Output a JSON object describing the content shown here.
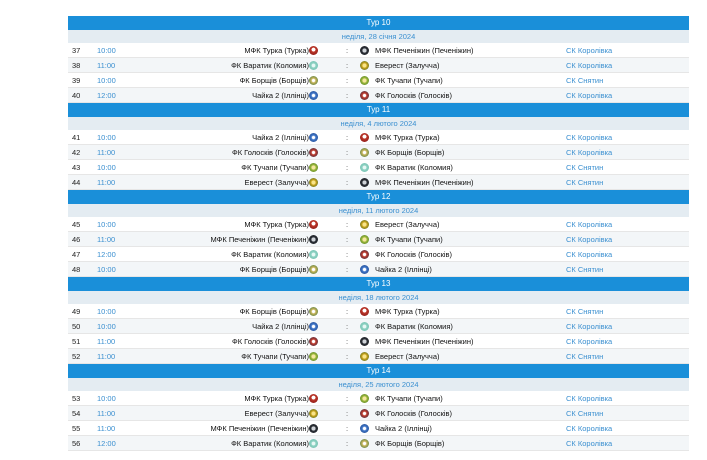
{
  "rounds": [
    {
      "title": "Тур 10",
      "date": "неділя, 28 січня 2024",
      "matches": [
        {
          "num": "37",
          "time": "10:00",
          "home": "МФК Турка (Турка)",
          "home_logo": "turka",
          "sep": ":",
          "away_logo": "pecheni",
          "away": "МФК Печеніжин (Печеніжин)",
          "venue": "СК Королівка"
        },
        {
          "num": "38",
          "time": "11:00",
          "home": "ФК Варатик (Коломия)",
          "home_logo": "varatyk",
          "sep": ":",
          "away_logo": "everest",
          "away": "Еверест (Залучча)",
          "venue": "СК Королівка"
        },
        {
          "num": "39",
          "time": "10:00",
          "home": "ФК Борщів (Борщів)",
          "home_logo": "borsch",
          "sep": ":",
          "away_logo": "tuchapy",
          "away": "ФК Тучапи (Тучапи)",
          "venue": "СК Снятин"
        },
        {
          "num": "40",
          "time": "12:00",
          "home": "Чайка 2 (Іллінці)",
          "home_logo": "chaika",
          "sep": ":",
          "away_logo": "goloskiv",
          "away": "ФК Голосків (Голосків)",
          "venue": "СК Королівка"
        }
      ]
    },
    {
      "title": "Тур 11",
      "date": "неділя, 4 лютого 2024",
      "matches": [
        {
          "num": "41",
          "time": "10:00",
          "home": "Чайка 2 (Іллінці)",
          "home_logo": "chaika",
          "sep": ":",
          "away_logo": "turka",
          "away": "МФК Турка (Турка)",
          "venue": "СК Королівка"
        },
        {
          "num": "42",
          "time": "11:00",
          "home": "ФК Голосків (Голосків)",
          "home_logo": "goloskiv",
          "sep": ":",
          "away_logo": "borsch",
          "away": "ФК Борщів (Борщів)",
          "venue": "СК Королівка"
        },
        {
          "num": "43",
          "time": "10:00",
          "home": "ФК Тучапи (Тучапи)",
          "home_logo": "tuchapy",
          "sep": ":",
          "away_logo": "varatyk",
          "away": "ФК Варатик (Коломия)",
          "venue": "СК Снятин"
        },
        {
          "num": "44",
          "time": "11:00",
          "home": "Еверест (Залучча)",
          "home_logo": "everest",
          "sep": ":",
          "away_logo": "pecheni",
          "away": "МФК Печеніжин (Печеніжин)",
          "venue": "СК Снятин"
        }
      ]
    },
    {
      "title": "Тур 12",
      "date": "неділя, 11 лютого 2024",
      "matches": [
        {
          "num": "45",
          "time": "10:00",
          "home": "МФК Турка (Турка)",
          "home_logo": "turka",
          "sep": ":",
          "away_logo": "everest",
          "away": "Еверест (Залучча)",
          "venue": "СК Королівка"
        },
        {
          "num": "46",
          "time": "11:00",
          "home": "МФК Печеніжин (Печеніжин)",
          "home_logo": "pecheni",
          "sep": ":",
          "away_logo": "tuchapy",
          "away": "ФК Тучапи (Тучапи)",
          "venue": "СК Королівка"
        },
        {
          "num": "47",
          "time": "12:00",
          "home": "ФК Варатик (Коломия)",
          "home_logo": "varatyk",
          "sep": ":",
          "away_logo": "goloskiv",
          "away": "ФК Голосків (Голосків)",
          "venue": "СК Королівка"
        },
        {
          "num": "48",
          "time": "10:00",
          "home": "ФК Борщів (Борщів)",
          "home_logo": "borsch",
          "sep": ":",
          "away_logo": "chaika",
          "away": "Чайка 2 (Іллінці)",
          "venue": "СК Снятин"
        }
      ]
    },
    {
      "title": "Тур 13",
      "date": "неділя, 18 лютого 2024",
      "matches": [
        {
          "num": "49",
          "time": "10:00",
          "home": "ФК Борщів (Борщів)",
          "home_logo": "borsch",
          "sep": ":",
          "away_logo": "turka",
          "away": "МФК Турка (Турка)",
          "venue": "СК Снятин"
        },
        {
          "num": "50",
          "time": "10:00",
          "home": "Чайка 2 (Іллінці)",
          "home_logo": "chaika",
          "sep": ":",
          "away_logo": "varatyk",
          "away": "ФК Варатик (Коломия)",
          "venue": "СК Королівка"
        },
        {
          "num": "51",
          "time": "11:00",
          "home": "ФК Голосків (Голосків)",
          "home_logo": "goloskiv",
          "sep": ":",
          "away_logo": "pecheni",
          "away": "МФК Печеніжин (Печеніжин)",
          "venue": "СК Королівка"
        },
        {
          "num": "52",
          "time": "11:00",
          "home": "ФК Тучапи (Тучапи)",
          "home_logo": "tuchapy",
          "sep": ":",
          "away_logo": "everest",
          "away": "Еверест (Залучча)",
          "venue": "СК Снятин"
        }
      ]
    },
    {
      "title": "Тур 14",
      "date": "неділя, 25 лютого 2024",
      "matches": [
        {
          "num": "53",
          "time": "10:00",
          "home": "МФК Турка (Турка)",
          "home_logo": "turka",
          "sep": ":",
          "away_logo": "tuchapy",
          "away": "ФК Тучапи (Тучапи)",
          "venue": "СК Королівка"
        },
        {
          "num": "54",
          "time": "11:00",
          "home": "Еверест (Залучча)",
          "home_logo": "everest",
          "sep": ":",
          "away_logo": "goloskiv",
          "away": "ФК Голосків (Голосків)",
          "venue": "СК Снятин"
        },
        {
          "num": "55",
          "time": "11:00",
          "home": "МФК Печеніжин (Печеніжин)",
          "home_logo": "pecheni",
          "sep": ":",
          "away_logo": "chaika",
          "away": "Чайка 2 (Іллінці)",
          "venue": "СК Королівка"
        },
        {
          "num": "56",
          "time": "12:00",
          "home": "ФК Варатик (Коломия)",
          "home_logo": "varatyk",
          "sep": ":",
          "away_logo": "borsch",
          "away": "ФК Борщів (Борщів)",
          "venue": "СК Королівка"
        }
      ]
    }
  ]
}
